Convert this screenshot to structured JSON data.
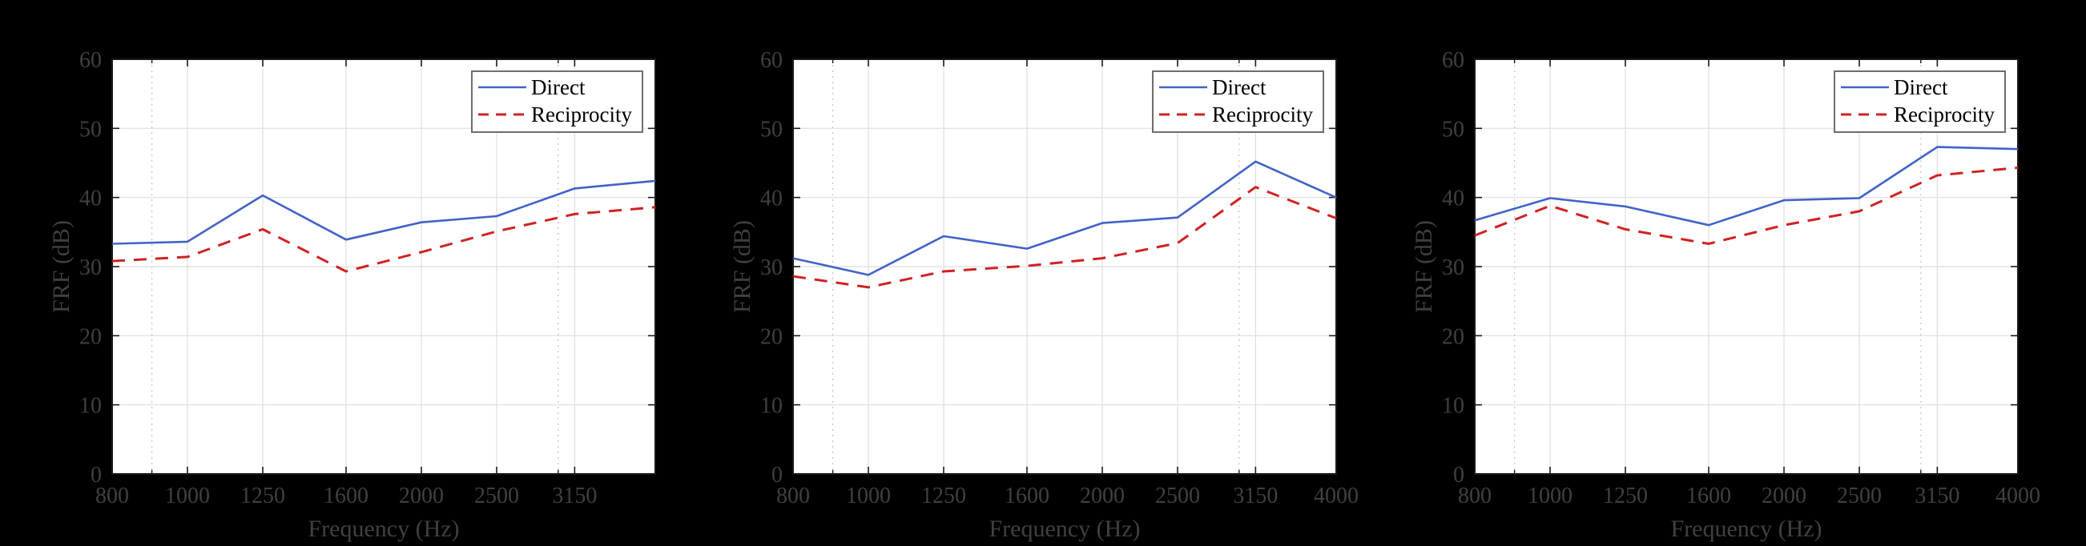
{
  "figure": {
    "description": "Three-panel FRF comparison, Direct vs Reciprocity, 1/3-octave bands",
    "colors": {
      "background": "#000000",
      "plot_background": "#ffffff",
      "axis": "#1a1a1a",
      "grid_major": "#dedede",
      "grid_minor": "#c4c4c4",
      "tick_text": "#404040",
      "legend_text": "#000000",
      "legend_border": "#6e6e6e",
      "direct": "#4262c8",
      "reciprocity": "#cf2222"
    },
    "legend_entries": [
      "Direct",
      "Reciprocity"
    ]
  },
  "chart_data": [
    {
      "type": "line",
      "panel": 1,
      "title": "",
      "xlabel": "Frequency (Hz)",
      "ylabel": "FRF (dB)",
      "x_scale": "log",
      "xlim": [
        800,
        4000
      ],
      "ylim": [
        0,
        60
      ],
      "grid": true,
      "categories": [
        800,
        1000,
        1250,
        1600,
        2000,
        2500,
        3150,
        4000
      ],
      "x_tick_labels": [
        "800",
        "1000",
        "1250",
        "1600",
        "2000",
        "2500",
        "3150"
      ],
      "y_ticks": [
        0,
        10,
        20,
        30,
        40,
        50,
        60
      ],
      "minor_grid_x": [
        900,
        3000
      ],
      "legend": {
        "position": "top-right"
      },
      "series": [
        {
          "name": "Direct",
          "style": "solid",
          "color": "#4262c8",
          "values": [
            33.3,
            33.6,
            40.3,
            33.9,
            36.4,
            37.3,
            41.3,
            42.4
          ]
        },
        {
          "name": "Reciprocity",
          "style": "dashed",
          "color": "#cf2222",
          "values": [
            30.8,
            31.4,
            35.4,
            29.3,
            32.1,
            35.1,
            37.6,
            38.6
          ]
        }
      ]
    },
    {
      "type": "line",
      "panel": 2,
      "title": "",
      "xlabel": "Frequency (Hz)",
      "ylabel": "FRF (dB)",
      "x_scale": "log",
      "xlim": [
        800,
        4000
      ],
      "ylim": [
        0,
        60
      ],
      "grid": true,
      "categories": [
        800,
        1000,
        1250,
        1600,
        2000,
        2500,
        3150,
        4000
      ],
      "x_tick_labels": [
        "800",
        "1000",
        "1250",
        "1600",
        "2000",
        "2500",
        "3150",
        "4000"
      ],
      "y_ticks": [
        0,
        10,
        20,
        30,
        40,
        50,
        60
      ],
      "minor_grid_x": [
        900,
        3000
      ],
      "legend": {
        "position": "top-right"
      },
      "series": [
        {
          "name": "Direct",
          "style": "solid",
          "color": "#4262c8",
          "values": [
            31.2,
            28.8,
            34.4,
            32.6,
            36.3,
            37.1,
            45.2,
            40.0
          ]
        },
        {
          "name": "Reciprocity",
          "style": "dashed",
          "color": "#cf2222",
          "values": [
            28.6,
            27.0,
            29.3,
            30.1,
            31.2,
            33.4,
            41.5,
            37.0
          ]
        }
      ]
    },
    {
      "type": "line",
      "panel": 3,
      "title": "",
      "xlabel": "Frequency (Hz)",
      "ylabel": "FRF (dB)",
      "x_scale": "log",
      "xlim": [
        800,
        4000
      ],
      "ylim": [
        0,
        60
      ],
      "grid": true,
      "categories": [
        800,
        1000,
        1250,
        1600,
        2000,
        2500,
        3150,
        4000
      ],
      "x_tick_labels": [
        "800",
        "1000",
        "1250",
        "1600",
        "2000",
        "2500",
        "3150",
        "4000"
      ],
      "y_ticks": [
        0,
        10,
        20,
        30,
        40,
        50,
        60
      ],
      "minor_grid_x": [
        900,
        3000
      ],
      "legend": {
        "position": "top-right"
      },
      "series": [
        {
          "name": "Direct",
          "style": "solid",
          "color": "#4262c8",
          "values": [
            36.7,
            39.9,
            38.7,
            36.0,
            39.6,
            39.9,
            47.3,
            47.0
          ]
        },
        {
          "name": "Reciprocity",
          "style": "dashed",
          "color": "#cf2222",
          "values": [
            34.5,
            38.8,
            35.4,
            33.3,
            36.0,
            38.0,
            43.2,
            44.3
          ]
        }
      ]
    }
  ]
}
